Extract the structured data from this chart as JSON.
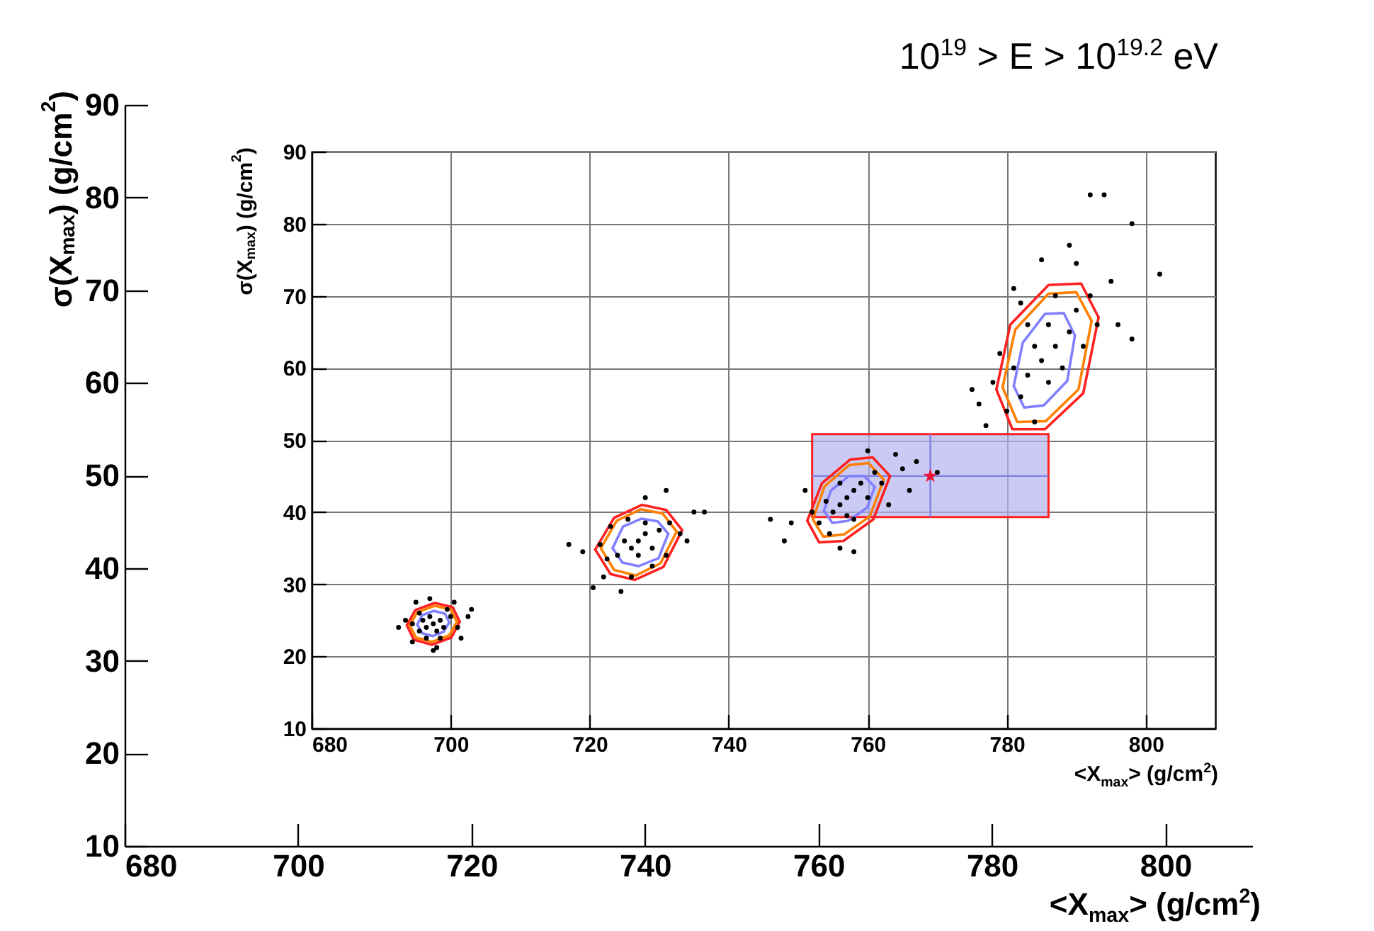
{
  "chart_data": [
    {
      "type": "scatter",
      "title": "10$^{19}$ > E > 10$^{19.2}$ eV",
      "xlabel": "<X$_{max}$> (g/cm$^{2}$)",
      "ylabel": "σ(X$_{max}$) (g/cm$^{2}$)",
      "xlim": [
        680,
        810
      ],
      "ylim": [
        10,
        90
      ],
      "xticks": [
        680,
        700,
        720,
        740,
        760,
        780,
        800
      ],
      "yticks": [
        10,
        20,
        30,
        40,
        50,
        60,
        70,
        80,
        90
      ],
      "grid": false
    },
    {
      "type": "scatter",
      "xlabel": "<X$_{max}$> (g/cm$^{2}$)",
      "ylabel": "σ(X$_{max}$) (g/cm$^{2}$)",
      "xlim": [
        680,
        810
      ],
      "ylim": [
        10,
        90
      ],
      "xticks": [
        680,
        700,
        720,
        740,
        760,
        780,
        800
      ],
      "yticks": [
        10,
        20,
        30,
        40,
        50,
        60,
        70,
        80,
        90
      ],
      "grid": true,
      "series": [
        {
          "type": "scatter",
          "marker": "circle",
          "color": "#000000",
          "x": [
            697.5,
            696.5,
            698.5,
            697,
            698,
            696,
            699,
            695.5,
            700,
            694.5,
            699.5,
            695.5,
            696.5,
            698.5,
            701,
            693.5,
            700.5,
            694.5,
            697,
            698,
            702.5,
            692.5,
            701.5,
            695,
            697.5,
            703
          ],
          "values": [
            24.5,
            24,
            25,
            25.5,
            23.5,
            25,
            24,
            23.5,
            25.5,
            24.5,
            26.5,
            26,
            22.5,
            22.5,
            24,
            25,
            27.5,
            22,
            28,
            21.2,
            25.5,
            24,
            22.5,
            27.5,
            20.8,
            26.5
          ]
        },
        {
          "type": "scatter",
          "marker": "circle",
          "color": "#000000",
          "x": [
            727,
            726,
            728,
            725,
            729,
            727,
            728,
            724,
            730,
            722.5,
            731.5,
            725.5,
            729,
            721.5,
            733,
            726,
            723,
            731,
            719,
            735,
            734,
            722,
            728,
            720.5,
            717,
            736.5,
            731,
            724.5
          ],
          "values": [
            36,
            35,
            37,
            36,
            35,
            34,
            38.5,
            34,
            37.5,
            33.5,
            38.5,
            39,
            32.5,
            35.5,
            37,
            31,
            38,
            34,
            34.5,
            40,
            36,
            31,
            42,
            29.5,
            35.5,
            40,
            43,
            29
          ]
        },
        {
          "type": "scatter",
          "marker": "circle",
          "color": "#000000",
          "x": [
            757,
            756,
            758,
            755,
            759,
            757,
            756,
            754,
            760,
            753,
            761,
            758,
            752,
            762,
            754.5,
            749,
            748,
            765,
            767,
            770,
            763,
            751,
            756,
            760,
            746,
            758,
            766,
            764
          ],
          "values": [
            42,
            41,
            43,
            40,
            44,
            39.5,
            44,
            41.5,
            42,
            38.5,
            45.5,
            39,
            40,
            44,
            37,
            38.5,
            36,
            46,
            47,
            45.5,
            41,
            43,
            35,
            48.5,
            39,
            34.5,
            43,
            48
          ]
        },
        {
          "type": "scatter",
          "marker": "circle",
          "color": "#000000",
          "x": [
            785,
            783,
            787,
            784,
            786,
            782,
            789,
            781,
            788,
            786,
            780,
            790,
            783,
            791,
            778,
            784,
            792,
            779,
            793,
            787,
            776,
            775,
            795,
            782,
            790,
            792,
            794,
            798,
            802,
            796,
            789,
            781,
            777,
            798,
            785
          ],
          "values": [
            61,
            59,
            63,
            63,
            58,
            56,
            65,
            60,
            60,
            66,
            54,
            68,
            66,
            63,
            58,
            52.5,
            70,
            62,
            66,
            70,
            55,
            57,
            72,
            69,
            74.5,
            84,
            84,
            80,
            73,
            66,
            77,
            71,
            52,
            64,
            75
          ]
        },
        {
          "type": "line",
          "marker": "none",
          "color": "#ff2020",
          "x": [
            693.7,
            694.9,
            697.7,
            700.3,
            701.3
          ],
          "values": [
            24.3,
            26.4,
            27.4,
            26.8,
            24.8
          ]
        },
        {
          "type": "line",
          "marker": "none",
          "color": "#ff2020",
          "x": [
            693.7,
            694.7,
            697.3,
            700.1,
            701.3
          ],
          "values": [
            24.3,
            22.3,
            21.6,
            22.6,
            24.8
          ]
        },
        {
          "type": "line",
          "marker": "none",
          "color": "#ff8000",
          "x": [
            694.1,
            695.2,
            697.7,
            700.0,
            700.9
          ],
          "values": [
            24.3,
            26.1,
            27.0,
            26.5,
            24.8
          ]
        },
        {
          "type": "line",
          "marker": "none",
          "color": "#ff8000",
          "x": [
            694.1,
            695.0,
            697.3,
            699.8,
            700.9
          ],
          "values": [
            24.3,
            22.6,
            22.0,
            22.9,
            24.8
          ]
        },
        {
          "type": "line",
          "marker": "none",
          "color": "#8080ff",
          "x": [
            695.2,
            695.9,
            697.6,
            699.2,
            699.8
          ],
          "values": [
            24.4,
            25.7,
            26.3,
            25.9,
            24.7
          ]
        },
        {
          "type": "line",
          "marker": "none",
          "color": "#8080ff",
          "x": [
            695.2,
            695.9,
            697.4,
            699.0,
            699.8
          ],
          "values": [
            24.4,
            23.2,
            22.8,
            23.4,
            24.7
          ]
        },
        {
          "type": "line",
          "marker": "none",
          "color": "#ff2020",
          "x": [
            720.8,
            723.5,
            727.5,
            731.0,
            733.3
          ],
          "values": [
            34.8,
            39.2,
            41.0,
            40.3,
            37.5
          ]
        },
        {
          "type": "line",
          "marker": "none",
          "color": "#ff2020",
          "x": [
            720.8,
            723.0,
            726.5,
            730.6,
            733.3
          ],
          "values": [
            34.8,
            31.4,
            30.6,
            32.4,
            37.5
          ]
        },
        {
          "type": "line",
          "marker": "none",
          "color": "#ff8000",
          "x": [
            721.6,
            723.9,
            727.4,
            730.5,
            732.5
          ],
          "values": [
            35.0,
            38.8,
            40.4,
            39.8,
            37.3
          ]
        },
        {
          "type": "line",
          "marker": "none",
          "color": "#ff8000",
          "x": [
            721.6,
            723.5,
            726.6,
            730.2,
            732.5
          ],
          "values": [
            35.0,
            32.0,
            31.2,
            32.9,
            37.3
          ]
        },
        {
          "type": "line",
          "marker": "none",
          "color": "#8080ff",
          "x": [
            723.3,
            724.8,
            727.5,
            729.8,
            731.3
          ],
          "values": [
            35.0,
            38.0,
            39.1,
            38.7,
            37.0
          ]
        },
        {
          "type": "line",
          "marker": "none",
          "color": "#8080ff",
          "x": [
            723.3,
            724.7,
            727.0,
            729.9,
            731.3
          ],
          "values": [
            35.0,
            33.0,
            32.5,
            33.6,
            37.0
          ]
        },
        {
          "type": "line",
          "marker": "none",
          "color": "#ff2020",
          "x": [
            751.3,
            753.4,
            757.5,
            760.7,
            763.2
          ],
          "values": [
            38.8,
            44.0,
            47.3,
            47.6,
            45.0
          ]
        },
        {
          "type": "line",
          "marker": "none",
          "color": "#ff2020",
          "x": [
            751.3,
            753.0,
            756.5,
            760.8,
            763.2
          ],
          "values": [
            38.8,
            35.8,
            36.0,
            39.0,
            45.0
          ]
        },
        {
          "type": "line",
          "marker": "none",
          "color": "#ff8000",
          "x": [
            752.1,
            753.8,
            757.3,
            760.1,
            762.3
          ],
          "values": [
            39.0,
            43.6,
            46.5,
            46.8,
            44.5
          ]
        },
        {
          "type": "line",
          "marker": "none",
          "color": "#ff8000",
          "x": [
            752.1,
            753.6,
            756.6,
            760.3,
            762.3
          ],
          "values": [
            39.0,
            36.6,
            36.9,
            39.4,
            44.5
          ]
        },
        {
          "type": "line",
          "marker": "none",
          "color": "#8080ff",
          "x": [
            753.7,
            754.7,
            757.3,
            759.5,
            761.0
          ],
          "values": [
            40.2,
            43.0,
            45.0,
            45.0,
            43.5
          ]
        },
        {
          "type": "line",
          "marker": "none",
          "color": "#8080ff",
          "x": [
            753.7,
            754.9,
            757.2,
            759.9,
            761.0
          ],
          "values": [
            40.2,
            38.5,
            38.8,
            40.6,
            43.5
          ]
        },
        {
          "type": "line",
          "marker": "none",
          "color": "#ff2020",
          "x": [
            778.5,
            780.5,
            786.0,
            790.7,
            793.2
          ],
          "values": [
            57.0,
            66.0,
            71.5,
            71.7,
            67.0
          ]
        },
        {
          "type": "line",
          "marker": "none",
          "color": "#ff2020",
          "x": [
            778.5,
            780.8,
            785.5,
            791.0,
            793.2
          ],
          "values": [
            57.0,
            51.5,
            51.5,
            56.5,
            67.0
          ]
        },
        {
          "type": "line",
          "marker": "none",
          "color": "#ff8000",
          "x": [
            779.4,
            781.2,
            786.0,
            790.0,
            792.2
          ],
          "values": [
            57.3,
            65.3,
            70.3,
            70.5,
            66.5
          ]
        },
        {
          "type": "line",
          "marker": "none",
          "color": "#ff8000",
          "x": [
            779.4,
            781.5,
            785.6,
            790.3,
            792.2
          ],
          "values": [
            57.3,
            52.5,
            52.6,
            57.0,
            66.5
          ]
        },
        {
          "type": "line",
          "marker": "none",
          "color": "#8080ff",
          "x": [
            781.0,
            782.3,
            785.5,
            788.2,
            789.8
          ],
          "values": [
            57.5,
            63.5,
            67.5,
            67.6,
            64.5
          ]
        },
        {
          "type": "line",
          "marker": "none",
          "color": "#8080ff",
          "x": [
            781.0,
            782.5,
            785.3,
            788.7,
            789.8
          ],
          "values": [
            57.5,
            54.5,
            54.8,
            58.2,
            64.5
          ]
        },
        {
          "type": "scatter",
          "marker": "star",
          "color": "#ee1133",
          "x": [
            769
          ],
          "values": [
            45
          ],
          "xerrors": [
            [
              752,
              786
            ]
          ],
          "errors": [
            [
              39.3,
              50.8
            ]
          ]
        }
      ]
    }
  ]
}
